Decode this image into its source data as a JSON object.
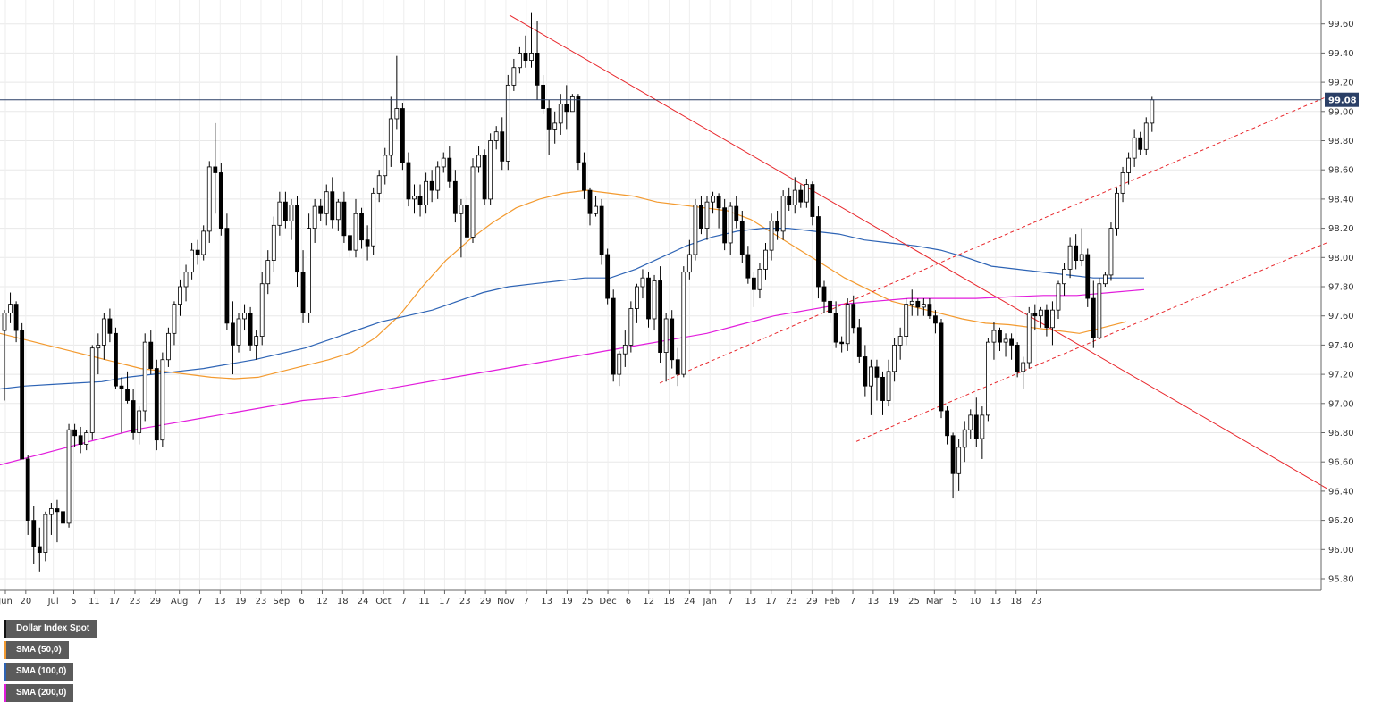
{
  "legend": {
    "items": [
      {
        "label": "Dollar Index Spot",
        "color": "#111111"
      },
      {
        "label": "SMA (50,0)",
        "color": "#f39a2f"
      },
      {
        "label": "SMA (100,0)",
        "color": "#2e64b5"
      },
      {
        "label": "SMA (200,0)",
        "color": "#e21cdc"
      }
    ]
  },
  "price_tag": {
    "value": "99.08",
    "bg": "#2a3f66"
  },
  "chart_data": {
    "type": "candlestick",
    "title": "Dollar Index Spot",
    "ylim": [
      95.75,
      99.76
    ],
    "y_ticks": [
      "95.80",
      "96.00",
      "96.20",
      "96.40",
      "96.60",
      "96.80",
      "97.00",
      "97.20",
      "97.40",
      "97.60",
      "97.80",
      "98.00",
      "98.20",
      "98.40",
      "98.60",
      "98.80",
      "99.00",
      "99.20",
      "99.40",
      "99.60"
    ],
    "x_ticks": [
      "Jun",
      "20",
      "Jul",
      "5",
      "11",
      "17",
      "23",
      "29",
      "Aug",
      "7",
      "13",
      "19",
      "23",
      "Sep",
      "6",
      "12",
      "18",
      "24",
      "Oct",
      "7",
      "11",
      "17",
      "23",
      "29",
      "Nov",
      "7",
      "13",
      "19",
      "25",
      "Dec",
      "6",
      "12",
      "18",
      "24",
      "Jan",
      "7",
      "13",
      "17",
      "23",
      "29",
      "Feb",
      "7",
      "13",
      "19",
      "25",
      "Mar",
      "5",
      "10",
      "13",
      "18",
      "23"
    ],
    "grid": true,
    "last_price": 99.08,
    "colors": {
      "up": "#ffffff",
      "down": "#000000",
      "sma50": "#f39a2f",
      "sma100": "#2e64b5",
      "sma200": "#e21cdc",
      "trendline": "#e8262b",
      "price_line": "#2a3f66"
    },
    "ohlc": [
      [
        97.5,
        97.64,
        97.02,
        97.62
      ],
      [
        97.62,
        97.76,
        97.55,
        97.68
      ],
      [
        97.68,
        97.7,
        97.42,
        97.5
      ],
      [
        97.5,
        97.55,
        96.65,
        96.62
      ],
      [
        96.62,
        96.65,
        96.1,
        96.2
      ],
      [
        96.2,
        96.3,
        95.9,
        96.02
      ],
      [
        96.02,
        96.15,
        95.85,
        95.98
      ],
      [
        95.98,
        96.26,
        95.92,
        96.24
      ],
      [
        96.24,
        96.32,
        96.1,
        96.28
      ],
      [
        96.28,
        96.34,
        96.05,
        96.26
      ],
      [
        96.26,
        96.4,
        96.02,
        96.18
      ],
      [
        96.18,
        96.86,
        96.15,
        96.82
      ],
      [
        96.82,
        96.86,
        96.7,
        96.78
      ],
      [
        96.78,
        96.84,
        96.66,
        96.72
      ],
      [
        96.72,
        96.82,
        96.68,
        96.8
      ],
      [
        96.8,
        97.4,
        96.75,
        97.38
      ],
      [
        97.38,
        97.48,
        97.2,
        97.4
      ],
      [
        97.4,
        97.62,
        97.3,
        97.58
      ],
      [
        97.58,
        97.65,
        97.42,
        97.48
      ],
      [
        97.48,
        97.52,
        97.1,
        97.12
      ],
      [
        97.12,
        97.18,
        96.8,
        97.1
      ],
      [
        97.1,
        97.22,
        97.0,
        97.02
      ],
      [
        97.02,
        97.1,
        96.75,
        96.8
      ],
      [
        96.8,
        96.98,
        96.72,
        96.95
      ],
      [
        96.95,
        97.48,
        96.88,
        97.42
      ],
      [
        97.42,
        97.5,
        97.2,
        97.24
      ],
      [
        97.24,
        97.3,
        96.68,
        96.75
      ],
      [
        96.75,
        97.35,
        96.7,
        97.3
      ],
      [
        97.3,
        97.52,
        97.25,
        97.48
      ],
      [
        97.48,
        97.7,
        97.4,
        97.68
      ],
      [
        97.68,
        97.85,
        97.6,
        97.8
      ],
      [
        97.8,
        97.95,
        97.7,
        97.9
      ],
      [
        97.9,
        98.1,
        97.85,
        98.05
      ],
      [
        98.05,
        98.12,
        97.95,
        98.02
      ],
      [
        98.02,
        98.22,
        97.98,
        98.18
      ],
      [
        98.18,
        98.66,
        98.1,
        98.62
      ],
      [
        98.62,
        98.92,
        98.3,
        98.58
      ],
      [
        98.58,
        98.65,
        98.15,
        98.2
      ],
      [
        98.2,
        98.3,
        97.5,
        97.55
      ],
      [
        97.55,
        97.7,
        97.2,
        97.4
      ],
      [
        97.4,
        97.62,
        97.35,
        97.58
      ],
      [
        97.58,
        97.68,
        97.5,
        97.62
      ],
      [
        97.62,
        97.66,
        97.36,
        97.4
      ],
      [
        97.4,
        97.5,
        97.3,
        97.46
      ],
      [
        97.46,
        97.9,
        97.4,
        97.82
      ],
      [
        97.82,
        98.05,
        97.75,
        97.98
      ],
      [
        97.98,
        98.28,
        97.9,
        98.22
      ],
      [
        98.22,
        98.45,
        98.15,
        98.38
      ],
      [
        98.38,
        98.45,
        98.2,
        98.25
      ],
      [
        98.25,
        98.4,
        98.12,
        98.36
      ],
      [
        98.36,
        98.42,
        97.8,
        97.9
      ],
      [
        97.9,
        98.05,
        97.55,
        97.62
      ],
      [
        97.62,
        98.3,
        97.55,
        98.2
      ],
      [
        98.2,
        98.4,
        98.1,
        98.35
      ],
      [
        98.35,
        98.4,
        98.25,
        98.3
      ],
      [
        98.3,
        98.5,
        98.22,
        98.45
      ],
      [
        98.45,
        98.55,
        98.2,
        98.26
      ],
      [
        98.26,
        98.4,
        98.18,
        98.38
      ],
      [
        98.38,
        98.45,
        98.1,
        98.15
      ],
      [
        98.15,
        98.2,
        98.0,
        98.05
      ],
      [
        98.05,
        98.4,
        98.0,
        98.3
      ],
      [
        98.3,
        98.34,
        98.06,
        98.12
      ],
      [
        98.12,
        98.22,
        97.98,
        98.08
      ],
      [
        98.08,
        98.48,
        98.02,
        98.44
      ],
      [
        98.44,
        98.6,
        98.38,
        98.56
      ],
      [
        98.56,
        98.75,
        98.5,
        98.7
      ],
      [
        98.7,
        99.1,
        98.62,
        98.95
      ],
      [
        98.95,
        99.38,
        98.88,
        99.02
      ],
      [
        99.02,
        99.06,
        98.6,
        98.65
      ],
      [
        98.65,
        98.72,
        98.35,
        98.4
      ],
      [
        98.4,
        98.5,
        98.3,
        98.42
      ],
      [
        98.42,
        98.5,
        98.28,
        98.36
      ],
      [
        98.36,
        98.58,
        98.3,
        98.52
      ],
      [
        98.52,
        98.6,
        98.38,
        98.46
      ],
      [
        98.46,
        98.66,
        98.4,
        98.62
      ],
      [
        98.62,
        98.72,
        98.58,
        98.68
      ],
      [
        98.68,
        98.76,
        98.48,
        98.52
      ],
      [
        98.52,
        98.6,
        98.24,
        98.3
      ],
      [
        98.3,
        98.4,
        98.0,
        98.36
      ],
      [
        98.36,
        98.42,
        98.08,
        98.14
      ],
      [
        98.14,
        98.68,
        98.1,
        98.62
      ],
      [
        98.62,
        98.76,
        98.58,
        98.7
      ],
      [
        98.7,
        98.74,
        98.36,
        98.4
      ],
      [
        98.4,
        98.85,
        98.36,
        98.8
      ],
      [
        98.8,
        98.9,
        98.74,
        98.86
      ],
      [
        98.86,
        98.96,
        98.6,
        98.66
      ],
      [
        98.66,
        99.25,
        98.6,
        99.18
      ],
      [
        99.18,
        99.36,
        99.14,
        99.3
      ],
      [
        99.3,
        99.44,
        99.26,
        99.4
      ],
      [
        99.4,
        99.52,
        99.3,
        99.35
      ],
      [
        99.35,
        99.68,
        99.3,
        99.4
      ],
      [
        99.4,
        99.62,
        99.08,
        99.18
      ],
      [
        99.18,
        99.25,
        98.98,
        99.02
      ],
      [
        99.02,
        99.08,
        98.7,
        98.88
      ],
      [
        98.88,
        99.0,
        98.78,
        98.92
      ],
      [
        98.92,
        99.12,
        98.84,
        99.05
      ],
      [
        99.05,
        99.18,
        98.88,
        99.0
      ],
      [
        99.0,
        99.12,
        99.02,
        99.1
      ],
      [
        99.1,
        99.12,
        98.6,
        98.65
      ],
      [
        98.65,
        98.72,
        98.4,
        98.46
      ],
      [
        98.46,
        98.48,
        98.22,
        98.3
      ],
      [
        98.3,
        98.42,
        98.28,
        98.35
      ],
      [
        98.35,
        98.4,
        97.95,
        98.02
      ],
      [
        98.02,
        98.06,
        97.68,
        97.72
      ],
      [
        97.72,
        97.78,
        97.15,
        97.2
      ],
      [
        97.2,
        97.36,
        97.12,
        97.34
      ],
      [
        97.34,
        97.5,
        97.25,
        97.4
      ],
      [
        97.4,
        97.7,
        97.35,
        97.65
      ],
      [
        97.65,
        97.82,
        97.55,
        97.8
      ],
      [
        97.8,
        97.92,
        97.72,
        97.86
      ],
      [
        97.86,
        97.9,
        97.52,
        97.58
      ],
      [
        97.58,
        97.88,
        97.5,
        97.84
      ],
      [
        97.84,
        97.94,
        97.28,
        97.35
      ],
      [
        97.35,
        97.62,
        97.15,
        97.58
      ],
      [
        97.58,
        97.64,
        97.24,
        97.3
      ],
      [
        97.3,
        97.38,
        97.12,
        97.2
      ],
      [
        97.2,
        97.94,
        97.18,
        97.9
      ],
      [
        97.9,
        98.12,
        97.85,
        98.02
      ],
      [
        98.02,
        98.4,
        97.98,
        98.36
      ],
      [
        98.36,
        98.42,
        98.16,
        98.2
      ],
      [
        98.2,
        98.42,
        98.12,
        98.38
      ],
      [
        98.38,
        98.45,
        98.3,
        98.42
      ],
      [
        98.42,
        98.44,
        98.2,
        98.34
      ],
      [
        98.34,
        98.4,
        98.05,
        98.1
      ],
      [
        98.1,
        98.38,
        98.02,
        98.35
      ],
      [
        98.35,
        98.42,
        98.2,
        98.25
      ],
      [
        98.25,
        98.32,
        97.96,
        98.02
      ],
      [
        98.02,
        98.08,
        97.82,
        97.86
      ],
      [
        97.86,
        97.9,
        97.66,
        97.78
      ],
      [
        97.78,
        97.96,
        97.72,
        97.92
      ],
      [
        97.92,
        98.1,
        97.85,
        98.05
      ],
      [
        98.05,
        98.3,
        97.98,
        98.25
      ],
      [
        98.25,
        98.32,
        98.12,
        98.18
      ],
      [
        98.18,
        98.46,
        98.12,
        98.42
      ],
      [
        98.42,
        98.48,
        98.32,
        98.36
      ],
      [
        98.36,
        98.55,
        98.3,
        98.46
      ],
      [
        98.46,
        98.5,
        98.34,
        98.38
      ],
      [
        98.38,
        98.54,
        98.34,
        98.5
      ],
      [
        98.5,
        98.52,
        98.22,
        98.28
      ],
      [
        98.28,
        98.35,
        97.72,
        97.8
      ],
      [
        97.8,
        97.84,
        97.62,
        97.7
      ],
      [
        97.7,
        97.78,
        97.55,
        97.62
      ],
      [
        97.62,
        97.7,
        97.38,
        97.42
      ],
      [
        97.42,
        97.46,
        97.35,
        97.41
      ],
      [
        97.41,
        97.72,
        97.36,
        97.68
      ],
      [
        97.68,
        97.74,
        97.48,
        97.52
      ],
      [
        97.52,
        97.58,
        97.28,
        97.32
      ],
      [
        97.32,
        97.4,
        97.05,
        97.12
      ],
      [
        97.12,
        97.3,
        96.92,
        97.25
      ],
      [
        97.25,
        97.3,
        97.02,
        97.18
      ],
      [
        97.18,
        97.22,
        96.92,
        97.02
      ],
      [
        97.02,
        97.3,
        96.98,
        97.22
      ],
      [
        97.22,
        97.45,
        97.15,
        97.4
      ],
      [
        97.4,
        97.52,
        97.3,
        97.46
      ],
      [
        97.46,
        97.72,
        97.4,
        97.68
      ],
      [
        97.68,
        97.78,
        97.6,
        97.7
      ],
      [
        97.7,
        97.72,
        97.6,
        97.66
      ],
      [
        97.66,
        97.72,
        97.6,
        97.68
      ],
      [
        97.68,
        97.72,
        97.58,
        97.6
      ],
      [
        97.6,
        97.64,
        97.48,
        97.55
      ],
      [
        97.55,
        97.58,
        96.9,
        96.95
      ],
      [
        96.95,
        96.98,
        96.72,
        96.78
      ],
      [
        96.78,
        96.8,
        96.35,
        96.52
      ],
      [
        96.52,
        96.76,
        96.4,
        96.7
      ],
      [
        96.7,
        96.88,
        96.6,
        96.82
      ],
      [
        96.82,
        96.96,
        96.76,
        96.92
      ],
      [
        96.92,
        97.04,
        96.7,
        96.76
      ],
      [
        96.76,
        96.98,
        96.62,
        96.92
      ],
      [
        96.92,
        97.45,
        96.88,
        97.42
      ],
      [
        97.42,
        97.56,
        97.3,
        97.5
      ],
      [
        97.5,
        97.52,
        97.36,
        97.42
      ],
      [
        97.42,
        97.48,
        97.32,
        97.44
      ],
      [
        97.44,
        97.48,
        97.3,
        97.4
      ],
      [
        97.4,
        97.42,
        97.18,
        97.22
      ],
      [
        97.22,
        97.32,
        97.1,
        97.28
      ],
      [
        97.28,
        97.66,
        97.24,
        97.62
      ],
      [
        97.62,
        97.68,
        97.5,
        97.6
      ],
      [
        97.6,
        97.66,
        97.52,
        97.64
      ],
      [
        97.64,
        97.68,
        97.46,
        97.52
      ],
      [
        97.52,
        97.7,
        97.4,
        97.64
      ],
      [
        97.64,
        97.84,
        97.58,
        97.82
      ],
      [
        97.82,
        97.96,
        97.74,
        97.92
      ],
      [
        97.92,
        98.14,
        97.86,
        98.08
      ],
      [
        98.08,
        98.16,
        97.92,
        97.98
      ],
      [
        97.98,
        98.2,
        97.94,
        98.02
      ],
      [
        98.02,
        98.06,
        97.66,
        97.72
      ],
      [
        97.72,
        97.84,
        97.38,
        97.45
      ],
      [
        97.45,
        97.86,
        97.44,
        97.82
      ],
      [
        97.82,
        97.9,
        97.8,
        97.88
      ],
      [
        97.88,
        98.24,
        97.84,
        98.2
      ],
      [
        98.2,
        98.48,
        98.15,
        98.44
      ],
      [
        98.44,
        98.62,
        98.38,
        98.58
      ],
      [
        98.58,
        98.72,
        98.5,
        98.68
      ],
      [
        98.68,
        98.88,
        98.62,
        98.82
      ],
      [
        98.82,
        98.86,
        98.7,
        98.74
      ],
      [
        98.74,
        98.96,
        98.7,
        98.92
      ],
      [
        98.92,
        99.1,
        98.86,
        99.08
      ]
    ],
    "sma50": [
      97.48,
      97.44,
      97.4,
      97.36,
      97.32,
      97.28,
      97.24,
      97.22,
      97.2,
      97.18,
      97.17,
      97.18,
      97.22,
      97.26,
      97.3,
      97.35,
      97.45,
      97.6,
      97.8,
      97.98,
      98.12,
      98.24,
      98.34,
      98.4,
      98.44,
      98.46,
      98.44,
      98.42,
      98.38,
      98.36,
      98.34,
      98.32,
      98.26,
      98.16,
      98.06,
      97.96,
      97.86,
      97.78,
      97.7,
      97.66,
      97.62,
      97.58,
      97.55,
      97.54,
      97.52,
      97.5,
      97.48,
      97.52,
      97.56
    ],
    "sma100": [
      97.1,
      97.12,
      97.13,
      97.14,
      97.15,
      97.18,
      97.2,
      97.22,
      97.24,
      97.27,
      97.3,
      97.34,
      97.38,
      97.44,
      97.5,
      97.56,
      97.6,
      97.64,
      97.7,
      97.76,
      97.8,
      97.82,
      97.84,
      97.86,
      97.86,
      97.92,
      98.0,
      98.08,
      98.14,
      98.18,
      98.2,
      98.2,
      98.18,
      98.16,
      98.12,
      98.1,
      98.08,
      98.05,
      98.0,
      97.94,
      97.92,
      97.9,
      97.88,
      97.86,
      97.86,
      97.86
    ],
    "sma200": [
      96.58,
      96.64,
      96.7,
      96.76,
      96.82,
      96.86,
      96.9,
      96.94,
      96.98,
      97.02,
      97.04,
      97.08,
      97.12,
      97.16,
      97.2,
      97.24,
      97.28,
      97.32,
      97.36,
      97.4,
      97.44,
      97.48,
      97.54,
      97.6,
      97.64,
      97.68,
      97.7,
      97.72,
      97.72,
      97.72,
      97.73,
      97.74,
      97.74,
      97.76,
      97.78
    ]
  }
}
